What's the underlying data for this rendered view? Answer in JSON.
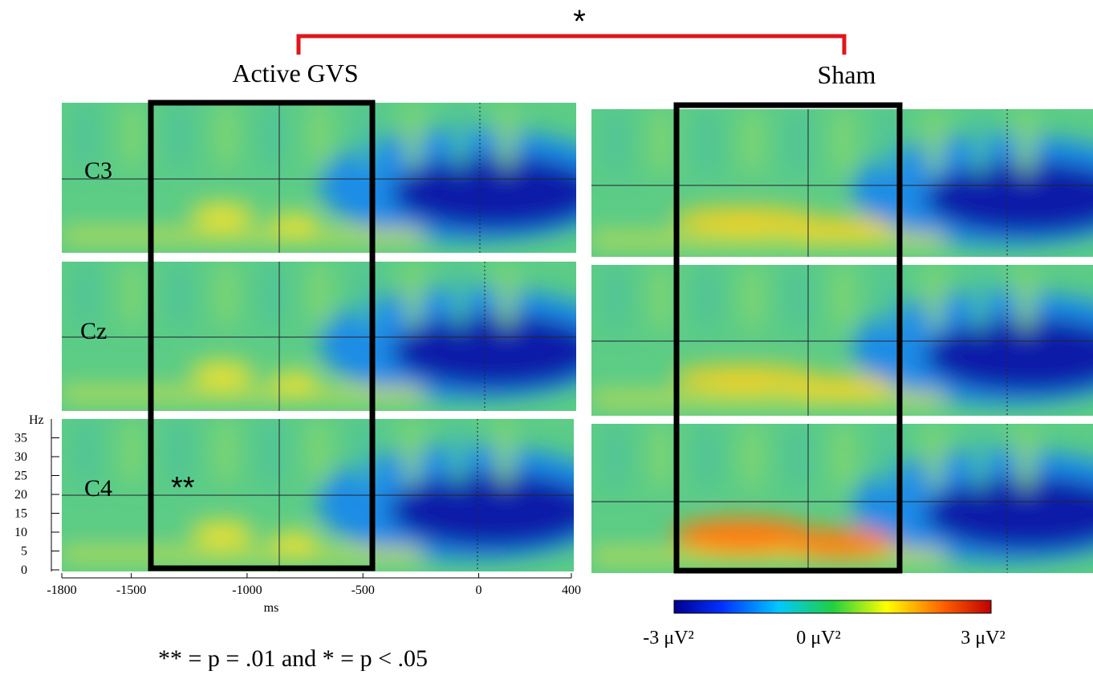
{
  "bracket_label": "*",
  "conditions": [
    "Active GVS",
    "Sham"
  ],
  "channels": [
    "C3",
    "Cz",
    "C4"
  ],
  "significance_label": "**",
  "x_axis": {
    "label": "ms",
    "lim": [
      -1800,
      400
    ],
    "ticks": [
      -1800,
      -1500,
      -1000,
      -500,
      0,
      400
    ]
  },
  "y_axis": {
    "label": "Hz",
    "lim": [
      0,
      40
    ],
    "ticks": [
      0,
      5,
      10,
      15,
      20,
      25,
      30,
      35
    ]
  },
  "colorbar": {
    "labels": [
      "-3 μV²",
      "0 μV²",
      "3 μV²"
    ]
  },
  "footnote": "** = p = .01 and * = p < .05"
}
